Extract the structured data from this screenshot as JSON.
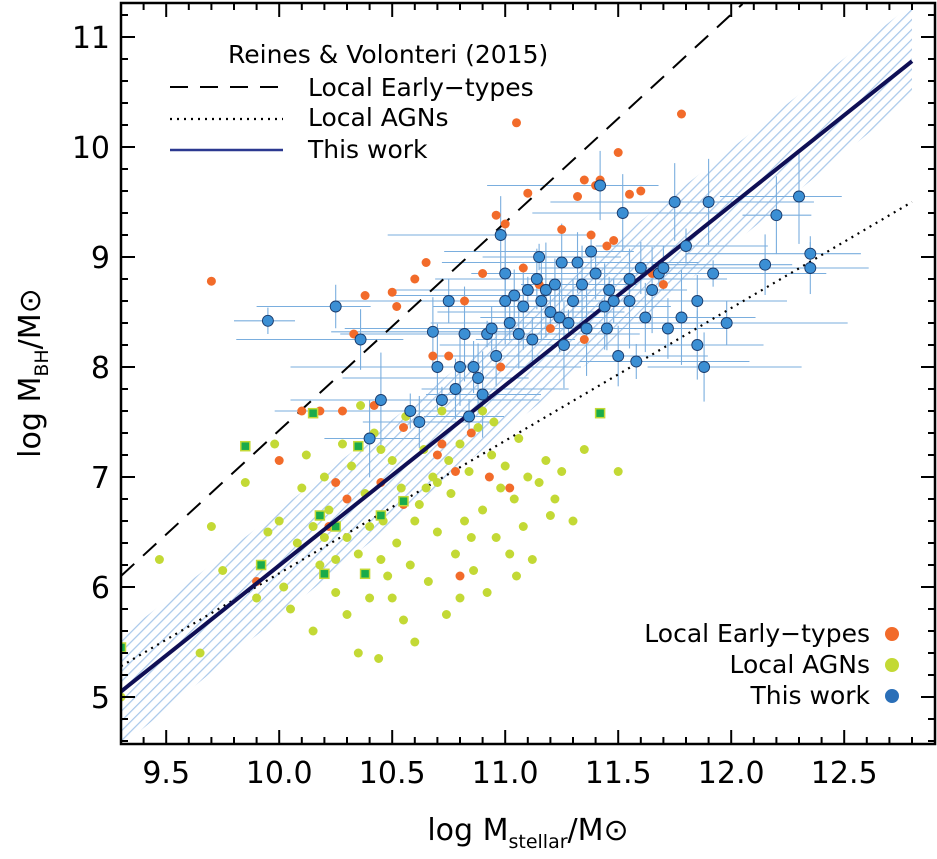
{
  "chart_data": {
    "type": "scatter",
    "xlabel": {
      "prefix": "log M",
      "sub": "stellar",
      "suffix": "/M⊙"
    },
    "ylabel": {
      "prefix": "log M",
      "sub": "BH",
      "suffix": "/M⊙"
    },
    "xlim": [
      9.3,
      12.8
    ],
    "ylim": [
      4.6,
      11.3
    ],
    "x_ticks": [
      "9.5",
      "10.0",
      "10.5",
      "11.0",
      "11.5",
      "12.0",
      "12.5"
    ],
    "y_ticks": [
      "5",
      "6",
      "7",
      "8",
      "9",
      "10",
      "11"
    ],
    "grid": false,
    "legend_top": {
      "title": "Reines & Volonteri (2015)",
      "entries": [
        "Local Early−types",
        "Local AGNs",
        "This work"
      ],
      "placement": "top-left"
    },
    "legend_bottom": {
      "entries": [
        "Local Early−types",
        "Local AGNs",
        "This work"
      ],
      "placement": "bottom-right"
    },
    "colors": {
      "early": "#f26b2a",
      "agn": "#c3d935",
      "this_work": "#3b8fd4",
      "fit_line": "#0f0f55",
      "band": "#a9c8ea",
      "errbar": "#7aaede",
      "square": "#1aab4b"
    },
    "relations": {
      "local_early_types": {
        "style": "dashed",
        "points": [
          [
            9.3,
            6.1
          ],
          [
            12.05,
            11.3
          ]
        ]
      },
      "local_agns": {
        "style": "dotted",
        "points": [
          [
            9.3,
            5.28
          ],
          [
            12.8,
            9.5
          ]
        ]
      },
      "this_work": {
        "style": "solid",
        "points": [
          [
            9.3,
            5.05
          ],
          [
            12.8,
            10.78
          ]
        ]
      },
      "this_work_scatter_band": {
        "x": [
          9.3,
          12.8
        ],
        "lower": [
          4.55,
          10.45
        ],
        "upper": [
          5.55,
          11.3
        ]
      }
    },
    "series": [
      {
        "name": "Local Early−types",
        "points": [
          [
            9.7,
            8.78
          ],
          [
            9.9,
            6.05
          ],
          [
            10.0,
            7.15
          ],
          [
            10.1,
            7.6
          ],
          [
            10.18,
            7.6
          ],
          [
            10.25,
            6.95
          ],
          [
            10.28,
            7.6
          ],
          [
            10.3,
            6.8
          ],
          [
            10.33,
            8.3
          ],
          [
            10.38,
            8.65
          ],
          [
            10.42,
            7.65
          ],
          [
            10.45,
            6.95
          ],
          [
            10.5,
            8.68
          ],
          [
            10.52,
            8.55
          ],
          [
            10.55,
            7.45
          ],
          [
            10.6,
            8.8
          ],
          [
            10.62,
            7.5
          ],
          [
            10.65,
            8.95
          ],
          [
            10.68,
            8.1
          ],
          [
            10.7,
            7.2
          ],
          [
            10.72,
            7.3
          ],
          [
            10.75,
            8.1
          ],
          [
            10.78,
            7.05
          ],
          [
            10.82,
            8.6
          ],
          [
            10.85,
            7.4
          ],
          [
            10.9,
            8.85
          ],
          [
            10.93,
            7.0
          ],
          [
            10.96,
            9.38
          ],
          [
            10.98,
            8.0
          ],
          [
            11.0,
            9.3
          ],
          [
            11.02,
            6.9
          ],
          [
            11.05,
            10.22
          ],
          [
            11.08,
            8.9
          ],
          [
            11.1,
            9.58
          ],
          [
            11.15,
            8.75
          ],
          [
            11.2,
            8.35
          ],
          [
            11.25,
            9.25
          ],
          [
            11.3,
            8.6
          ],
          [
            11.32,
            9.55
          ],
          [
            11.35,
            9.7
          ],
          [
            11.38,
            9.2
          ],
          [
            11.4,
            9.65
          ],
          [
            11.42,
            9.7
          ],
          [
            11.45,
            9.1
          ],
          [
            11.48,
            9.15
          ],
          [
            11.5,
            9.95
          ],
          [
            11.55,
            9.57
          ],
          [
            11.6,
            9.6
          ],
          [
            11.65,
            8.85
          ],
          [
            11.7,
            8.75
          ],
          [
            11.78,
            10.3
          ],
          [
            10.8,
            6.1
          ],
          [
            10.55,
            6.75
          ],
          [
            11.35,
            8.25
          ],
          [
            10.22,
            6.55
          ]
        ]
      },
      {
        "name": "Local AGNs",
        "points": [
          [
            9.3,
            5.0
          ],
          [
            9.47,
            6.25
          ],
          [
            9.65,
            5.4
          ],
          [
            9.7,
            6.55
          ],
          [
            9.75,
            6.15
          ],
          [
            9.85,
            6.95
          ],
          [
            9.9,
            5.9
          ],
          [
            9.95,
            6.5
          ],
          [
            9.98,
            7.3
          ],
          [
            10.02,
            6.0
          ],
          [
            10.05,
            5.8
          ],
          [
            10.08,
            6.4
          ],
          [
            10.1,
            6.9
          ],
          [
            10.12,
            7.2
          ],
          [
            10.15,
            5.6
          ],
          [
            10.18,
            6.2
          ],
          [
            10.2,
            7.0
          ],
          [
            10.22,
            6.7
          ],
          [
            10.25,
            5.95
          ],
          [
            10.28,
            7.3
          ],
          [
            10.3,
            6.45
          ],
          [
            10.32,
            7.1
          ],
          [
            10.35,
            6.3
          ],
          [
            10.36,
            7.65
          ],
          [
            10.38,
            6.85
          ],
          [
            10.4,
            5.9
          ],
          [
            10.42,
            7.4
          ],
          [
            10.44,
            5.35
          ],
          [
            10.46,
            6.6
          ],
          [
            10.48,
            6.1
          ],
          [
            10.5,
            7.15
          ],
          [
            10.52,
            6.4
          ],
          [
            10.54,
            6.9
          ],
          [
            10.56,
            7.55
          ],
          [
            10.58,
            6.2
          ],
          [
            10.6,
            5.5
          ],
          [
            10.62,
            6.75
          ],
          [
            10.64,
            7.25
          ],
          [
            10.66,
            6.05
          ],
          [
            10.68,
            7.0
          ],
          [
            10.7,
            6.5
          ],
          [
            10.72,
            7.6
          ],
          [
            10.74,
            5.75
          ],
          [
            10.76,
            6.85
          ],
          [
            10.78,
            6.3
          ],
          [
            10.8,
            7.3
          ],
          [
            10.82,
            6.6
          ],
          [
            10.84,
            7.05
          ],
          [
            10.86,
            6.15
          ],
          [
            10.88,
            7.45
          ],
          [
            10.9,
            6.7
          ],
          [
            10.92,
            5.95
          ],
          [
            10.94,
            7.2
          ],
          [
            10.96,
            6.45
          ],
          [
            10.98,
            6.9
          ],
          [
            11.0,
            7.1
          ],
          [
            11.02,
            6.3
          ],
          [
            11.04,
            6.8
          ],
          [
            11.06,
            7.35
          ],
          [
            11.08,
            6.55
          ],
          [
            11.1,
            7.0
          ],
          [
            11.12,
            6.25
          ],
          [
            11.15,
            6.95
          ],
          [
            11.18,
            7.15
          ],
          [
            11.2,
            6.65
          ],
          [
            11.25,
            7.05
          ],
          [
            11.3,
            6.6
          ],
          [
            11.35,
            7.25
          ],
          [
            11.5,
            7.05
          ],
          [
            10.45,
            6.25
          ],
          [
            10.55,
            5.7
          ],
          [
            10.35,
            5.4
          ],
          [
            10.25,
            6.25
          ],
          [
            10.15,
            6.55
          ],
          [
            11.22,
            6.8
          ],
          [
            10.65,
            6.9
          ],
          [
            10.85,
            6.45
          ],
          [
            10.75,
            7.15
          ],
          [
            10.95,
            7.5
          ],
          [
            10.6,
            6.6
          ],
          [
            10.4,
            6.55
          ],
          [
            10.3,
            5.75
          ],
          [
            10.5,
            5.9
          ],
          [
            10.7,
            6.95
          ],
          [
            10.9,
            7.6
          ],
          [
            11.05,
            6.1
          ],
          [
            10.8,
            5.9
          ],
          [
            10.2,
            6.45
          ],
          [
            10.45,
            7.25
          ],
          [
            10.0,
            6.6
          ]
        ]
      },
      {
        "name": "This work",
        "points": [
          [
            9.95,
            8.42
          ],
          [
            10.25,
            8.55
          ],
          [
            10.36,
            8.25
          ],
          [
            10.4,
            7.35
          ],
          [
            10.45,
            7.7
          ],
          [
            10.58,
            7.6
          ],
          [
            10.62,
            7.5
          ],
          [
            10.68,
            8.32
          ],
          [
            10.7,
            8.0
          ],
          [
            10.72,
            7.7
          ],
          [
            10.75,
            8.6
          ],
          [
            10.78,
            7.8
          ],
          [
            10.8,
            8.0
          ],
          [
            10.82,
            8.3
          ],
          [
            10.84,
            7.55
          ],
          [
            10.86,
            8.0
          ],
          [
            10.88,
            7.9
          ],
          [
            10.9,
            7.75
          ],
          [
            10.92,
            8.3
          ],
          [
            10.94,
            8.35
          ],
          [
            10.96,
            8.1
          ],
          [
            10.98,
            9.2
          ],
          [
            11.0,
            8.85
          ],
          [
            11.02,
            8.4
          ],
          [
            11.04,
            8.65
          ],
          [
            11.06,
            8.3
          ],
          [
            11.08,
            8.55
          ],
          [
            11.1,
            8.7
          ],
          [
            11.12,
            8.25
          ],
          [
            11.14,
            8.8
          ],
          [
            11.16,
            8.6
          ],
          [
            11.18,
            8.7
          ],
          [
            11.2,
            8.5
          ],
          [
            11.22,
            8.75
          ],
          [
            11.24,
            8.45
          ],
          [
            11.26,
            8.2
          ],
          [
            11.28,
            8.4
          ],
          [
            11.3,
            8.6
          ],
          [
            11.32,
            8.95
          ],
          [
            11.34,
            8.75
          ],
          [
            11.36,
            8.35
          ],
          [
            11.38,
            9.05
          ],
          [
            11.4,
            8.85
          ],
          [
            11.42,
            9.65
          ],
          [
            11.44,
            8.55
          ],
          [
            11.46,
            8.7
          ],
          [
            11.48,
            8.6
          ],
          [
            11.5,
            8.1
          ],
          [
            11.52,
            9.4
          ],
          [
            11.55,
            8.6
          ],
          [
            11.58,
            8.05
          ],
          [
            11.6,
            8.9
          ],
          [
            11.62,
            8.45
          ],
          [
            11.65,
            8.7
          ],
          [
            11.68,
            8.85
          ],
          [
            11.7,
            8.9
          ],
          [
            11.72,
            8.35
          ],
          [
            11.75,
            9.5
          ],
          [
            11.78,
            8.45
          ],
          [
            11.8,
            9.1
          ],
          [
            11.85,
            8.6
          ],
          [
            11.88,
            8.0
          ],
          [
            11.9,
            9.5
          ],
          [
            11.92,
            8.85
          ],
          [
            11.98,
            8.4
          ],
          [
            12.15,
            8.93
          ],
          [
            12.2,
            9.38
          ],
          [
            12.3,
            9.55
          ],
          [
            12.35,
            9.03
          ],
          [
            12.35,
            8.9
          ],
          [
            11.85,
            8.2
          ],
          [
            11.0,
            8.6
          ],
          [
            11.15,
            9.0
          ],
          [
            11.45,
            8.35
          ],
          [
            11.55,
            8.8
          ],
          [
            11.25,
            8.95
          ]
        ]
      },
      {
        "name": "squares",
        "points": [
          [
            9.3,
            5.45
          ],
          [
            9.85,
            7.28
          ],
          [
            9.92,
            6.2
          ],
          [
            10.15,
            7.58
          ],
          [
            10.18,
            6.65
          ],
          [
            10.2,
            6.12
          ],
          [
            10.25,
            6.55
          ],
          [
            10.35,
            7.28
          ],
          [
            10.38,
            6.12
          ],
          [
            10.45,
            6.65
          ],
          [
            10.55,
            6.78
          ],
          [
            11.42,
            7.58
          ]
        ]
      }
    ]
  }
}
